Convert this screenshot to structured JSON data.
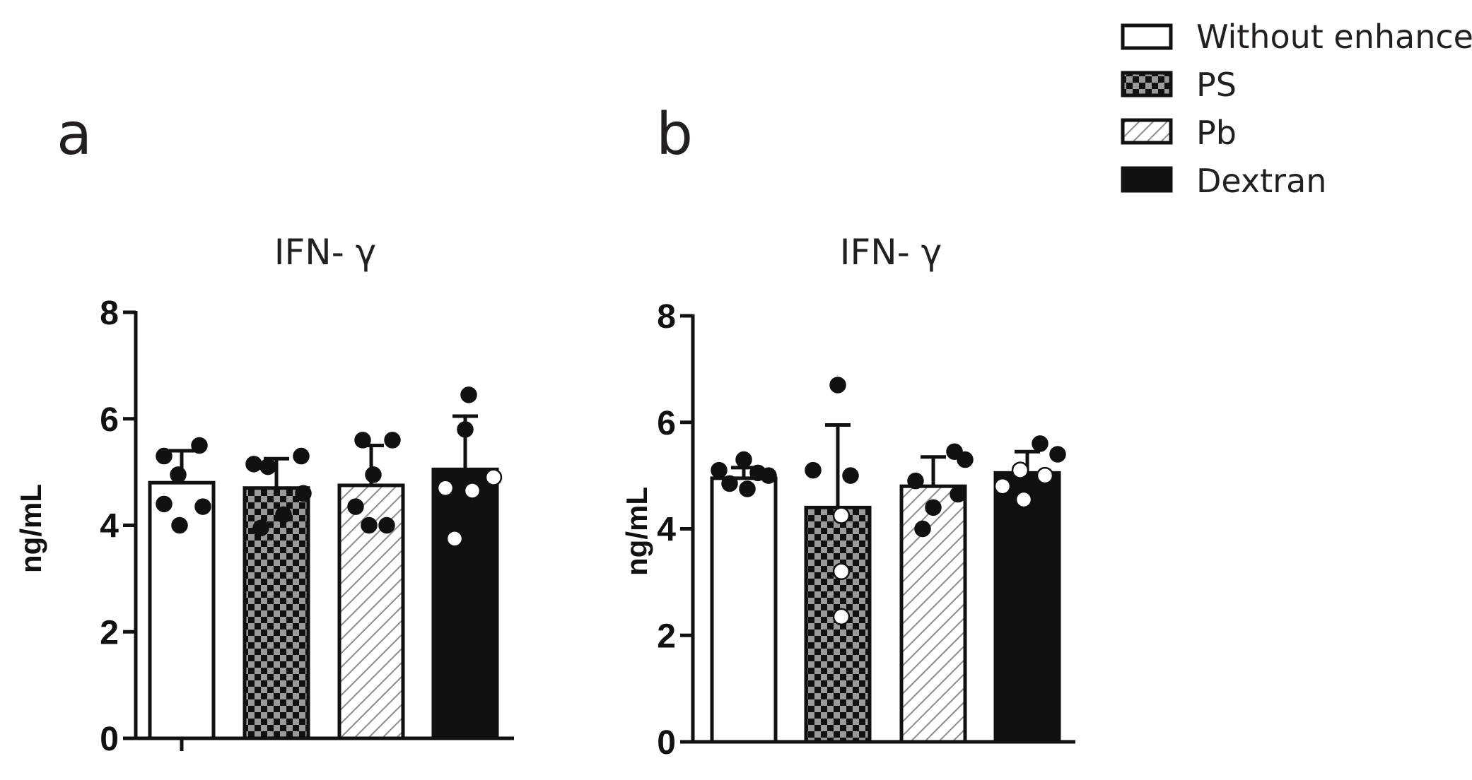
{
  "legend": [
    {
      "label": "Without enhancer",
      "pattern": "white"
    },
    {
      "label": "PS",
      "pattern": "checker"
    },
    {
      "label": "Pb",
      "pattern": "hatch"
    },
    {
      "label": "Dextran",
      "pattern": "black"
    }
  ],
  "colors": {
    "ink": "#111111",
    "checker_light": "#9a9a9a",
    "hatch": "#8c8c8c"
  },
  "chart_data": [
    {
      "type": "bar",
      "panel": "a",
      "title": "IFN- γ",
      "ylabel": "ng/mL",
      "ylim": [
        0,
        8
      ],
      "yticks": [
        0,
        2,
        4,
        6,
        8
      ],
      "categories": [
        "Without enhancer",
        "PS",
        "Pb",
        "Dextran"
      ],
      "values": [
        4.8,
        4.7,
        4.75,
        5.05
      ],
      "error_upper": [
        5.4,
        5.25,
        5.5,
        6.05
      ],
      "points": [
        [
          {
            "v": 5.3,
            "c": "black"
          },
          {
            "v": 5.5,
            "c": "black"
          },
          {
            "v": 4.95,
            "c": "black"
          },
          {
            "v": 4.4,
            "c": "black"
          },
          {
            "v": 4.35,
            "c": "black"
          },
          {
            "v": 4.0,
            "c": "black"
          }
        ],
        [
          {
            "v": 5.15,
            "c": "black"
          },
          {
            "v": 5.1,
            "c": "black"
          },
          {
            "v": 5.3,
            "c": "black"
          },
          {
            "v": 4.2,
            "c": "black"
          },
          {
            "v": 3.95,
            "c": "black"
          },
          {
            "v": 4.6,
            "c": "black"
          }
        ],
        [
          {
            "v": 5.6,
            "c": "black"
          },
          {
            "v": 5.6,
            "c": "black"
          },
          {
            "v": 4.95,
            "c": "black"
          },
          {
            "v": 4.35,
            "c": "black"
          },
          {
            "v": 4.0,
            "c": "black"
          },
          {
            "v": 4.0,
            "c": "black"
          }
        ],
        [
          {
            "v": 6.45,
            "c": "black"
          },
          {
            "v": 5.8,
            "c": "black"
          },
          {
            "v": 4.9,
            "c": "white"
          },
          {
            "v": 4.7,
            "c": "white"
          },
          {
            "v": 4.65,
            "c": "white"
          },
          {
            "v": 3.75,
            "c": "white"
          }
        ]
      ]
    },
    {
      "type": "bar",
      "panel": "b",
      "title": "IFN- γ",
      "ylabel": "ng/mL",
      "ylim": [
        0,
        8
      ],
      "yticks": [
        0,
        2,
        4,
        6,
        8
      ],
      "categories": [
        "Without enhancer",
        "PS",
        "Pb",
        "Dextran"
      ],
      "values": [
        4.95,
        4.4,
        4.8,
        5.05
      ],
      "error_upper": [
        5.15,
        5.95,
        5.35,
        5.45
      ],
      "points": [
        [
          {
            "v": 5.3,
            "c": "black"
          },
          {
            "v": 5.1,
            "c": "black"
          },
          {
            "v": 5.05,
            "c": "black"
          },
          {
            "v": 4.85,
            "c": "black"
          },
          {
            "v": 4.75,
            "c": "black"
          },
          {
            "v": 5.0,
            "c": "black"
          }
        ],
        [
          {
            "v": 6.7,
            "c": "black"
          },
          {
            "v": 5.1,
            "c": "black"
          },
          {
            "v": 5.0,
            "c": "black"
          },
          {
            "v": 4.25,
            "c": "white"
          },
          {
            "v": 3.2,
            "c": "white"
          },
          {
            "v": 2.35,
            "c": "white"
          }
        ],
        [
          {
            "v": 5.45,
            "c": "black"
          },
          {
            "v": 5.3,
            "c": "black"
          },
          {
            "v": 4.9,
            "c": "black"
          },
          {
            "v": 4.65,
            "c": "black"
          },
          {
            "v": 4.4,
            "c": "black"
          },
          {
            "v": 4.0,
            "c": "black"
          }
        ],
        [
          {
            "v": 5.6,
            "c": "black"
          },
          {
            "v": 5.4,
            "c": "black"
          },
          {
            "v": 5.1,
            "c": "white"
          },
          {
            "v": 4.8,
            "c": "white"
          },
          {
            "v": 4.55,
            "c": "white"
          },
          {
            "v": 5.0,
            "c": "white"
          }
        ]
      ]
    }
  ]
}
